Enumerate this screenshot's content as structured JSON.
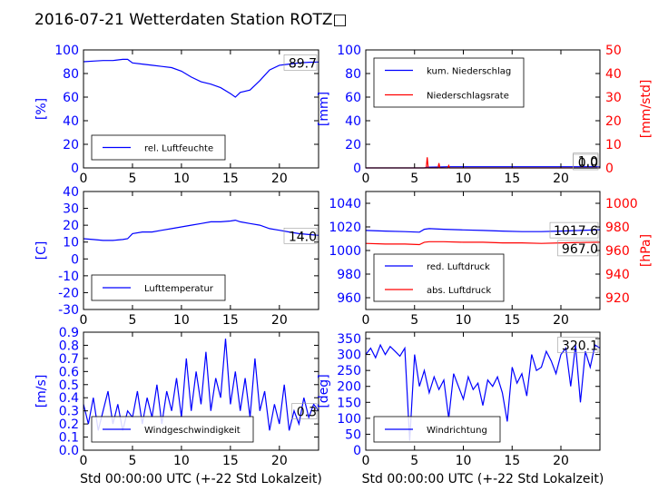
{
  "figure_title": "2016-07-21 Wetterdaten Station ROTZ□",
  "colors": {
    "primary": "#0000ff",
    "secondary": "#ff0000",
    "text": "#000000"
  },
  "chart_data": [
    {
      "type": "line",
      "name": "humidity",
      "ylabel": "[%]",
      "xlim": [
        0,
        24
      ],
      "ylim": [
        0,
        100
      ],
      "xticks": [
        0,
        5,
        10,
        15,
        20
      ],
      "yticks": [
        0,
        20,
        40,
        60,
        80,
        100
      ],
      "legend": [
        "rel. Luftfeuchte"
      ],
      "legend_position": "lower-left",
      "last_value_label": "89.7",
      "series": [
        {
          "name": "rel. Luftfeuchte",
          "color": "#0000ff",
          "x": [
            0,
            1,
            2,
            3,
            4,
            4.5,
            5,
            6,
            7,
            8,
            9,
            10,
            11,
            12,
            13,
            14,
            15,
            15.5,
            16,
            17,
            18,
            19,
            20,
            21,
            22,
            23,
            24
          ],
          "y": [
            90,
            90.5,
            91,
            91,
            92,
            92,
            89,
            88,
            87,
            86,
            85,
            82,
            77,
            73,
            71,
            68,
            63,
            60,
            64,
            66,
            74,
            83,
            87,
            88,
            89,
            89.5,
            89.7
          ]
        }
      ]
    },
    {
      "type": "line",
      "name": "precipitation",
      "ylabel": "[mm]",
      "y2label": "[mm/std]",
      "xlim": [
        0,
        24
      ],
      "ylim": [
        0,
        100
      ],
      "y2lim": [
        0,
        50
      ],
      "xticks": [
        0,
        5,
        10,
        15,
        20
      ],
      "yticks": [
        0,
        20,
        40,
        60,
        80,
        100
      ],
      "y2ticks": [
        0,
        10,
        20,
        30,
        40,
        50
      ],
      "legend": [
        "kum. Niederschlag",
        "Niederschlagsrate"
      ],
      "legend_position": "top-left",
      "last_value_label": "1.0",
      "last_value_label2": "0.0",
      "series": [
        {
          "name": "kum. Niederschlag",
          "axis": "left",
          "color": "#0000ff",
          "x": [
            0,
            6,
            6.3,
            7.5,
            8.5,
            9,
            24
          ],
          "y": [
            0,
            0,
            0.6,
            0.8,
            1.0,
            1.0,
            1.0
          ]
        },
        {
          "name": "Niederschlagsrate",
          "axis": "right",
          "color": "#ff0000",
          "x": [
            0,
            6.2,
            6.3,
            6.4,
            7.4,
            7.5,
            7.6,
            8.4,
            8.5,
            8.6,
            9,
            24
          ],
          "y": [
            0,
            0,
            4.5,
            0,
            0,
            2,
            0,
            0,
            1,
            0,
            0,
            0
          ]
        }
      ]
    },
    {
      "type": "line",
      "name": "temperature",
      "ylabel": "[C]",
      "xlim": [
        0,
        24
      ],
      "ylim": [
        -30,
        40
      ],
      "xticks": [
        0,
        5,
        10,
        15,
        20
      ],
      "yticks": [
        -30,
        -20,
        -10,
        0,
        10,
        20,
        30,
        40
      ],
      "legend": [
        "Lufttemperatur"
      ],
      "legend_position": "lower-left",
      "last_value_label": "14.0",
      "series": [
        {
          "name": "Lufttemperatur",
          "color": "#0000ff",
          "x": [
            0,
            1,
            2,
            3,
            4,
            4.5,
            5,
            6,
            7,
            8,
            9,
            10,
            11,
            12,
            13,
            14,
            15,
            15.5,
            16,
            17,
            18,
            19,
            20,
            21,
            22,
            23,
            24
          ],
          "y": [
            12,
            11.5,
            11,
            11,
            11.5,
            12,
            15,
            16,
            16,
            17,
            18,
            19,
            20,
            21,
            22,
            22,
            22.5,
            23,
            22,
            21,
            20,
            18,
            17,
            16,
            15,
            14.5,
            14.0
          ]
        }
      ]
    },
    {
      "type": "line",
      "name": "pressure",
      "y2label": "[hPa]",
      "xlim": [
        0,
        24
      ],
      "ylim": [
        950,
        1050
      ],
      "y2lim": [
        910,
        1010
      ],
      "xticks": [
        0,
        5,
        10,
        15,
        20
      ],
      "yticks": [
        960,
        980,
        1000,
        1020,
        1040
      ],
      "y2ticks": [
        920,
        940,
        960,
        980,
        1000
      ],
      "legend": [
        "red. Luftdruck",
        "abs. Luftdruck"
      ],
      "legend_position": "lower-left",
      "last_value_label": "1017.6",
      "last_value_label2": "967.0",
      "series": [
        {
          "name": "red. Luftdruck",
          "axis": "left",
          "color": "#0000ff",
          "x": [
            0,
            2,
            4,
            5.5,
            6,
            6.5,
            8,
            10,
            12,
            14,
            16,
            18,
            20,
            22,
            24
          ],
          "y": [
            1017,
            1016.5,
            1016,
            1015.5,
            1018,
            1018.5,
            1018,
            1017.5,
            1017,
            1016.5,
            1016,
            1016,
            1016.5,
            1017,
            1017.6
          ]
        },
        {
          "name": "abs. Luftdruck",
          "axis": "right",
          "color": "#ff0000",
          "x": [
            0,
            2,
            4,
            5.5,
            6,
            6.5,
            8,
            10,
            12,
            14,
            16,
            18,
            20,
            22,
            24
          ],
          "y": [
            966,
            965.5,
            965.5,
            965,
            967,
            967.5,
            967.5,
            967,
            967,
            966.5,
            966.5,
            966,
            966.5,
            966.8,
            967.0
          ]
        }
      ]
    },
    {
      "type": "line",
      "name": "windspeed",
      "ylabel": "[m/s]",
      "xlabel": "Std 00:00:00 UTC (+-22 Std Lokalzeit)",
      "xlim": [
        0,
        24
      ],
      "ylim": [
        0,
        0.9
      ],
      "xticks": [
        0,
        5,
        10,
        15,
        20
      ],
      "yticks": [
        0.0,
        0.1,
        0.2,
        0.3,
        0.4,
        0.5,
        0.6,
        0.7,
        0.8,
        0.9
      ],
      "ytick_labels": [
        "0.0",
        "0.1",
        "0.2",
        "0.3",
        "0.4",
        "0.5",
        "0.6",
        "0.7",
        "0.8",
        "0.9"
      ],
      "legend": [
        "Windgeschwindigkeit"
      ],
      "legend_position": "lower-left",
      "last_value_label": "0.3",
      "series": [
        {
          "name": "Windgeschwindigkeit",
          "color": "#0000ff",
          "x": [
            0,
            0.5,
            1,
            1.5,
            2,
            2.5,
            3,
            3.5,
            4,
            4.5,
            5,
            5.5,
            6,
            6.5,
            7,
            7.5,
            8,
            8.5,
            9,
            9.5,
            10,
            10.5,
            11,
            11.5,
            12,
            12.5,
            13,
            13.5,
            14,
            14.5,
            15,
            15.5,
            16,
            16.5,
            17,
            17.5,
            18,
            18.5,
            19,
            19.5,
            20,
            20.5,
            21,
            21.5,
            22,
            22.5,
            23,
            23.5,
            24
          ],
          "y": [
            0.35,
            0.2,
            0.4,
            0.15,
            0.3,
            0.45,
            0.2,
            0.35,
            0.15,
            0.3,
            0.25,
            0.45,
            0.2,
            0.4,
            0.25,
            0.5,
            0.2,
            0.45,
            0.3,
            0.55,
            0.25,
            0.7,
            0.3,
            0.6,
            0.35,
            0.75,
            0.3,
            0.55,
            0.4,
            0.85,
            0.35,
            0.6,
            0.3,
            0.55,
            0.25,
            0.7,
            0.3,
            0.45,
            0.15,
            0.35,
            0.2,
            0.5,
            0.15,
            0.3,
            0.2,
            0.4,
            0.25,
            0.35,
            0.3
          ]
        }
      ]
    },
    {
      "type": "line",
      "name": "winddirection",
      "ylabel": "[deg]",
      "xlabel": "Std 00:00:00 UTC (+-22 Std Lokalzeit)",
      "xlim": [
        0,
        24
      ],
      "ylim": [
        0,
        370
      ],
      "xticks": [
        0,
        5,
        10,
        15,
        20
      ],
      "yticks": [
        0,
        50,
        100,
        150,
        200,
        250,
        300,
        350
      ],
      "legend": [
        "Windrichtung"
      ],
      "legend_position": "lower-left",
      "last_value_label": "320.1",
      "series": [
        {
          "name": "Windrichtung",
          "color": "#0000ff",
          "x": [
            0,
            0.5,
            1,
            1.5,
            2,
            2.5,
            3,
            3.5,
            4,
            4.5,
            5,
            5.5,
            6,
            6.5,
            7,
            7.5,
            8,
            8.5,
            9,
            9.5,
            10,
            10.5,
            11,
            11.5,
            12,
            12.5,
            13,
            13.5,
            14,
            14.5,
            15,
            15.5,
            16,
            16.5,
            17,
            17.5,
            18,
            18.5,
            19,
            19.5,
            20,
            20.5,
            21,
            21.5,
            22,
            22.5,
            23,
            23.5,
            24
          ],
          "y": [
            300,
            320,
            290,
            330,
            300,
            325,
            310,
            295,
            320,
            30,
            300,
            200,
            250,
            180,
            230,
            190,
            220,
            100,
            240,
            200,
            160,
            230,
            190,
            210,
            140,
            220,
            200,
            230,
            180,
            90,
            260,
            210,
            240,
            170,
            300,
            250,
            260,
            310,
            280,
            240,
            300,
            320,
            200,
            330,
            150,
            310,
            260,
            330,
            320.1
          ]
        }
      ]
    }
  ]
}
